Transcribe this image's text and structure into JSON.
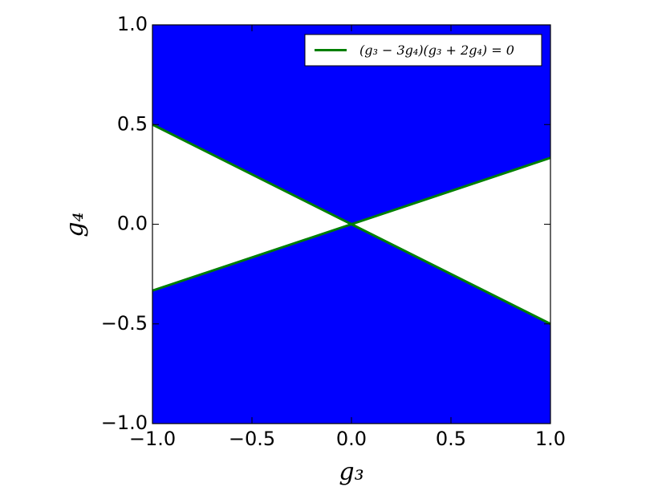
{
  "chart_data": {
    "type": "line",
    "xlabel": "g₃",
    "ylabel": "g₄",
    "xlim": [
      -1,
      1
    ],
    "ylim": [
      -1,
      1
    ],
    "xticks": [
      {
        "value": -1,
        "label": "−1.0"
      },
      {
        "value": -0.5,
        "label": "−0.5"
      },
      {
        "value": 0,
        "label": "0.0"
      },
      {
        "value": 0.5,
        "label": "0.5"
      },
      {
        "value": 1,
        "label": "1.0"
      }
    ],
    "yticks": [
      {
        "value": -1,
        "label": "−1.0"
      },
      {
        "value": -0.5,
        "label": "−0.5"
      },
      {
        "value": 0,
        "label": "0.0"
      },
      {
        "value": 0.5,
        "label": "0.5"
      },
      {
        "value": 1,
        "label": "1.0"
      }
    ],
    "fill_color": "#0000ff",
    "legend": "upper right",
    "series": [
      {
        "name": "(g₃ − 3g₄)(g₃ + 2g₄) = 0",
        "color": "#007f00",
        "x": [
          -1,
          0,
          1,
          null,
          -1,
          0,
          1
        ],
        "values": [
          0.5,
          0,
          -0.5,
          null,
          -0.333,
          0,
          0.333
        ]
      }
    ]
  }
}
